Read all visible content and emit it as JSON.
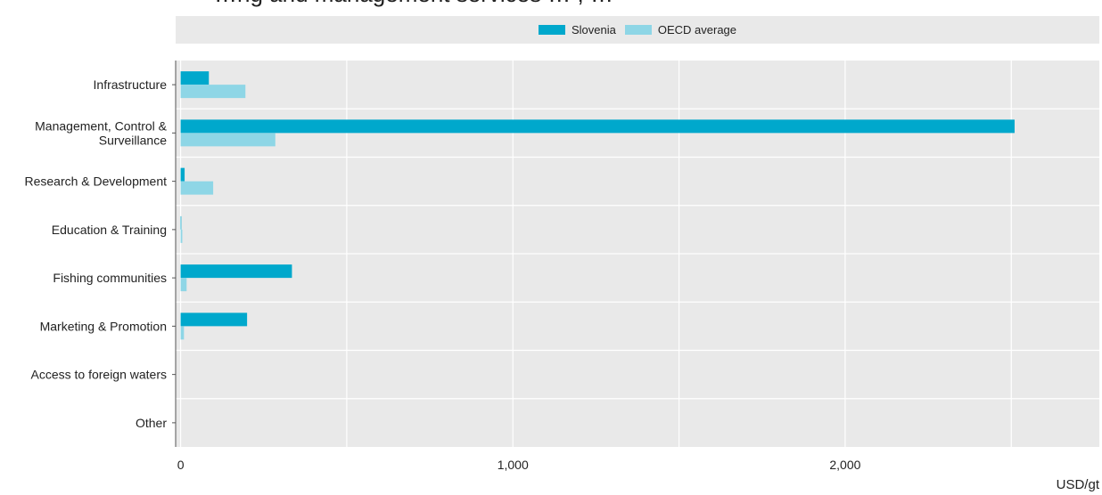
{
  "title": "…ng and management services … , …",
  "legend": [
    {
      "name": "Slovenia",
      "color": "#00a8cc"
    },
    {
      "name": "OECD average",
      "color": "#8ed6e6"
    }
  ],
  "unit_label": "USD/gt",
  "chart_data": {
    "type": "bar",
    "orientation": "horizontal",
    "categories": [
      "Infrastructure",
      "Management, Control & Surveillance",
      "Research & Development",
      "Education & Training",
      "Fishing communities",
      "Marketing & Promotion",
      "Access to foreign waters",
      "Other"
    ],
    "series": [
      {
        "name": "Slovenia",
        "color": "#00a8cc",
        "values": [
          85,
          2510,
          12,
          2,
          335,
          200,
          0,
          0
        ]
      },
      {
        "name": "OECD average",
        "color": "#8ed6e6",
        "values": [
          195,
          285,
          98,
          5,
          18,
          10,
          0,
          0
        ]
      }
    ],
    "xlim": [
      -15,
      2765
    ],
    "xticks": [
      0,
      1000,
      2000
    ],
    "xtick_labels": [
      "0",
      "1,000",
      "2,000"
    ],
    "grid": true,
    "legend_position": "top"
  }
}
